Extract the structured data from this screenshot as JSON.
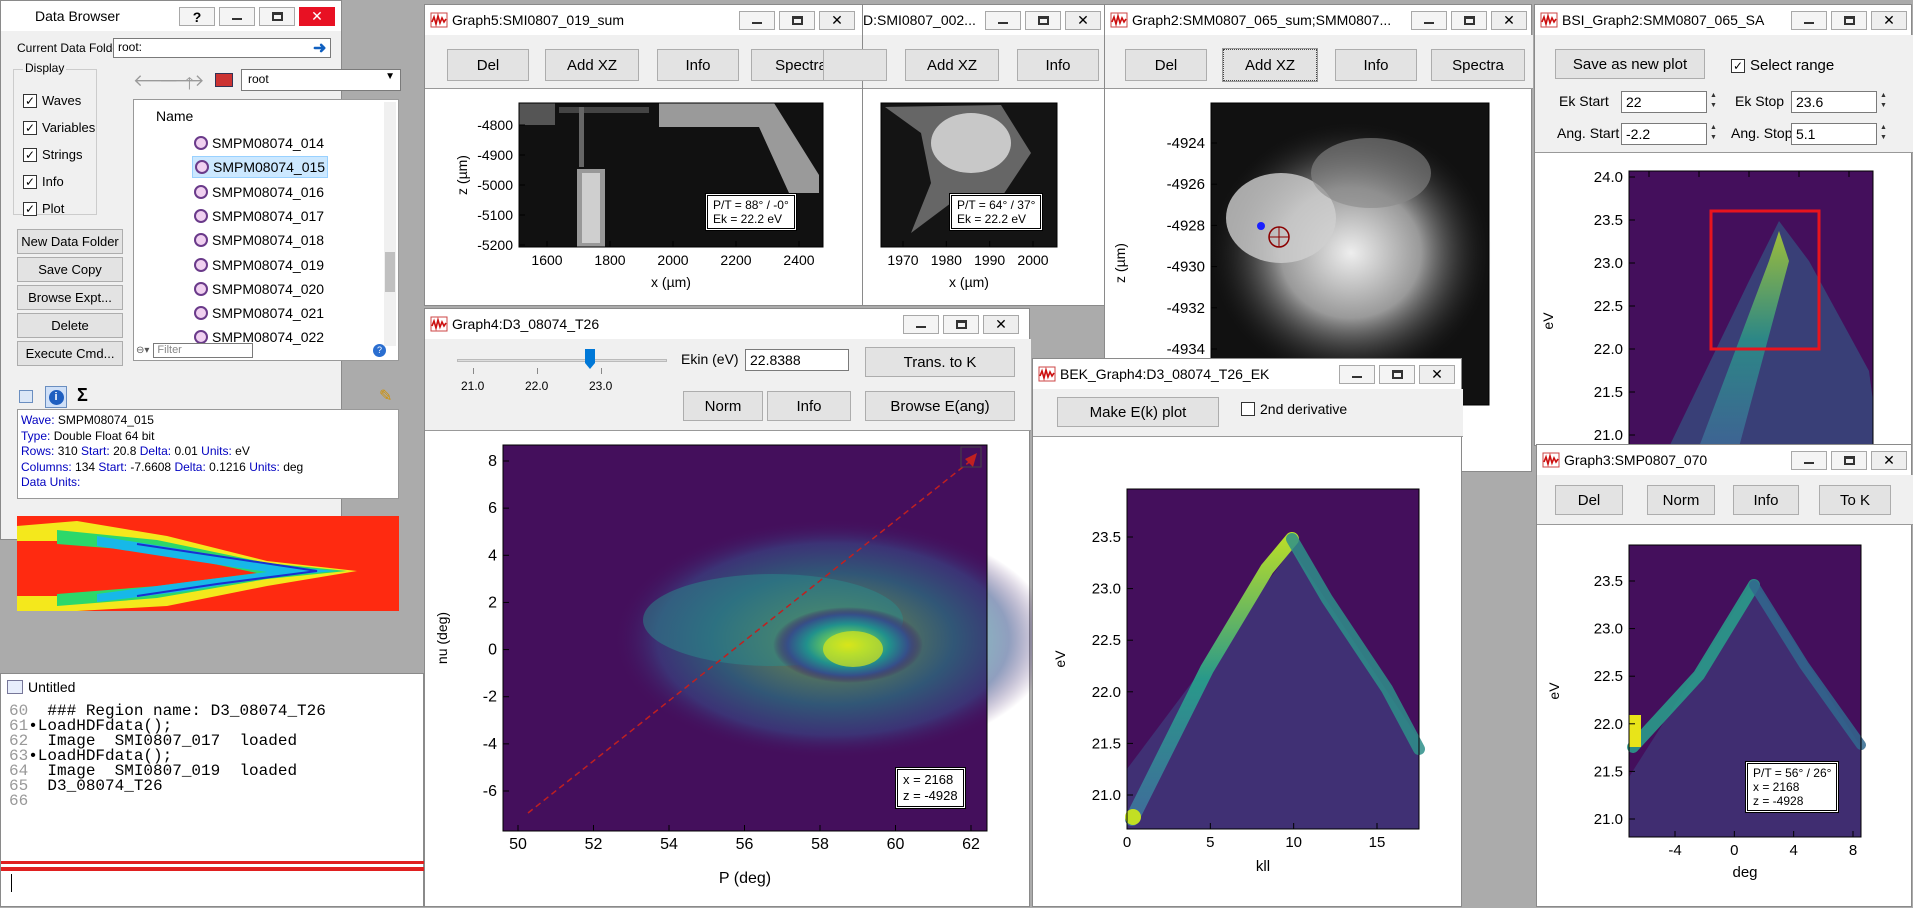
{
  "data_browser": {
    "title": "Data Browser",
    "current_folder_label": "Current Data Folder:",
    "current_folder_value": "root:",
    "display_group_label": "Display",
    "display_checks": [
      {
        "label": "Waves",
        "checked": true
      },
      {
        "label": "Variables",
        "checked": true
      },
      {
        "label": "Strings",
        "checked": true
      },
      {
        "label": "Info",
        "checked": true
      },
      {
        "label": "Plot",
        "checked": true
      }
    ],
    "buttons": [
      "New Data Folder",
      "Save Copy",
      "Browse Expt...",
      "Delete",
      "Execute Cmd..."
    ],
    "folder_select": "root",
    "list_header": "Name",
    "items": [
      "SMPM08074_014",
      "SMPM08074_015",
      "SMPM08074_016",
      "SMPM08074_017",
      "SMPM08074_018",
      "SMPM08074_019",
      "SMPM08074_020",
      "SMPM08074_021",
      "SMPM08074_022"
    ],
    "selected_index": 1,
    "filter_placeholder": "Filter",
    "sigma": "Σ",
    "info_lines": [
      [
        {
          "t": "Wave: ",
          "c": "#0000c0"
        },
        {
          "t": "SMPM08074_015",
          "c": "#000"
        }
      ],
      [
        {
          "t": "Type: ",
          "c": "#0000c0"
        },
        {
          "t": "Double Float 64 bit",
          "c": "#000"
        }
      ],
      [
        {
          "t": "Rows: ",
          "c": "#0000c0"
        },
        {
          "t": "310  ",
          "c": "#000"
        },
        {
          "t": "Start: ",
          "c": "#0000c0"
        },
        {
          "t": "20.8  ",
          "c": "#000"
        },
        {
          "t": "Delta: ",
          "c": "#0000c0"
        },
        {
          "t": "0.01  ",
          "c": "#000"
        },
        {
          "t": "Units: ",
          "c": "#0000c0"
        },
        {
          "t": "eV",
          "c": "#000"
        }
      ],
      [
        {
          "t": "Columns: ",
          "c": "#0000c0"
        },
        {
          "t": "134  ",
          "c": "#000"
        },
        {
          "t": "Start: ",
          "c": "#0000c0"
        },
        {
          "t": "-7.6608  ",
          "c": "#000"
        },
        {
          "t": "Delta: ",
          "c": "#0000c0"
        },
        {
          "t": "0.1216  ",
          "c": "#000"
        },
        {
          "t": "Units: ",
          "c": "#0000c0"
        },
        {
          "t": "deg",
          "c": "#000"
        }
      ],
      [
        {
          "t": "Data Units:",
          "c": "#0000c0"
        }
      ]
    ]
  },
  "untitled": {
    "title": "Untitled",
    "lines": [
      {
        "n": "60",
        "t": "  ### Region name: D3_08074_T26"
      },
      {
        "n": "61",
        "t": "•LoadHDFdata();"
      },
      {
        "n": "62",
        "t": "  Image  SMI0807_017  loaded"
      },
      {
        "n": "63",
        "t": "•LoadHDFdata();"
      },
      {
        "n": "64",
        "t": "  Image  SMI0807_019  loaded"
      },
      {
        "n": "65",
        "t": "  D3_08074_T26"
      },
      {
        "n": "66",
        "t": ""
      }
    ]
  },
  "graph5": {
    "title": "Graph5:SMI0807_019_sum",
    "buttons": [
      "Del",
      "Add XZ",
      "Info",
      "Spectra"
    ],
    "ann": [
      "P/T = 88° / -0°",
      "Ek = 22.2 eV"
    ],
    "xlabel": "x (µm)",
    "ylabel": "z (µm)",
    "xticks": [
      "1600",
      "1800",
      "2000",
      "2200",
      "2400"
    ],
    "yticks": [
      "-4800",
      "-4900",
      "-5000",
      "-5100",
      "-5200"
    ]
  },
  "graph_b": {
    "title": "D:SMI0807_002...",
    "buttons": [
      "Add XZ",
      "Info"
    ],
    "ann": [
      "P/T = 64° / 37°",
      "Ek = 22.2 eV"
    ],
    "xlabel": "x (µm)",
    "xticks": [
      "1970",
      "1980",
      "1990",
      "2000"
    ]
  },
  "graph2": {
    "title": "Graph2:SMM0807_065_sum;SMM0807...",
    "buttons": [
      "Del",
      "Add XZ",
      "Info",
      "Spectra"
    ],
    "ylabel": "z (µm)",
    "yticks": [
      "-4924",
      "-4926",
      "-4928",
      "-4930",
      "-4932",
      "-4934"
    ]
  },
  "bsi": {
    "title": "BSI_Graph2:SMM0807_065_SA",
    "save_button": "Save as new plot",
    "select_range_label": "Select range",
    "select_range_checked": true,
    "ek_start_label": "Ek Start",
    "ek_start_value": "22",
    "ek_stop_label": "Ek Stop",
    "ek_stop_value": "23.6",
    "ang_start_label": "Ang. Start",
    "ang_start_value": "-2.2",
    "ang_stop_label": "Ang. Stop",
    "ang_stop_value": "5.1",
    "ylabel": "eV",
    "yticks": [
      "24.0",
      "23.5",
      "23.0",
      "22.5",
      "22.0",
      "21.5",
      "21.0"
    ]
  },
  "graph4": {
    "title": "Graph4:D3_08074_T26",
    "slider_ticks": [
      "21.0",
      "22.0",
      "23.0"
    ],
    "ekin_label": "Ekin (eV)",
    "ekin_value": "22.8388",
    "buttons": {
      "trans": "Trans. to K",
      "norm": "Norm",
      "info": "Info",
      "browse": "Browse E(ang)"
    },
    "ann": [
      "x = 2168",
      "z = -4928"
    ],
    "xlabel": "P (deg)",
    "ylabel": "nu (deg)",
    "xticks": [
      "50",
      "52",
      "54",
      "56",
      "58",
      "60",
      "62"
    ],
    "yticks": [
      "8",
      "6",
      "4",
      "2",
      "0",
      "-2",
      "-4",
      "-6"
    ]
  },
  "bek": {
    "title": "BEK_Graph4:D3_08074_T26_EK",
    "make_button": "Make E(k) plot",
    "deriv_label": "2nd derivative",
    "deriv_checked": false,
    "xlabel": "kll",
    "ylabel": "eV",
    "xticks": [
      "0",
      "5",
      "10",
      "15"
    ],
    "yticks": [
      "23.5",
      "23.0",
      "22.5",
      "22.0",
      "21.5",
      "21.0"
    ]
  },
  "graph3": {
    "title": "Graph3:SMP0807_070",
    "buttons": [
      "Del",
      "Norm",
      "Info",
      "To K"
    ],
    "ann": [
      "P/T = 56° / 26°",
      "x = 2168",
      "z = -4928"
    ],
    "xlabel": "deg",
    "ylabel": "eV",
    "xticks": [
      "-4",
      "0",
      "4",
      "8"
    ],
    "yticks": [
      "23.5",
      "23.0",
      "22.5",
      "22.0",
      "21.5",
      "21.0"
    ]
  },
  "colors": {
    "viridis_bg": "#440f5c",
    "selection_box": "#e8141e",
    "marker_blue": "#1a20ff",
    "title_icon_red": "#cc1010"
  }
}
